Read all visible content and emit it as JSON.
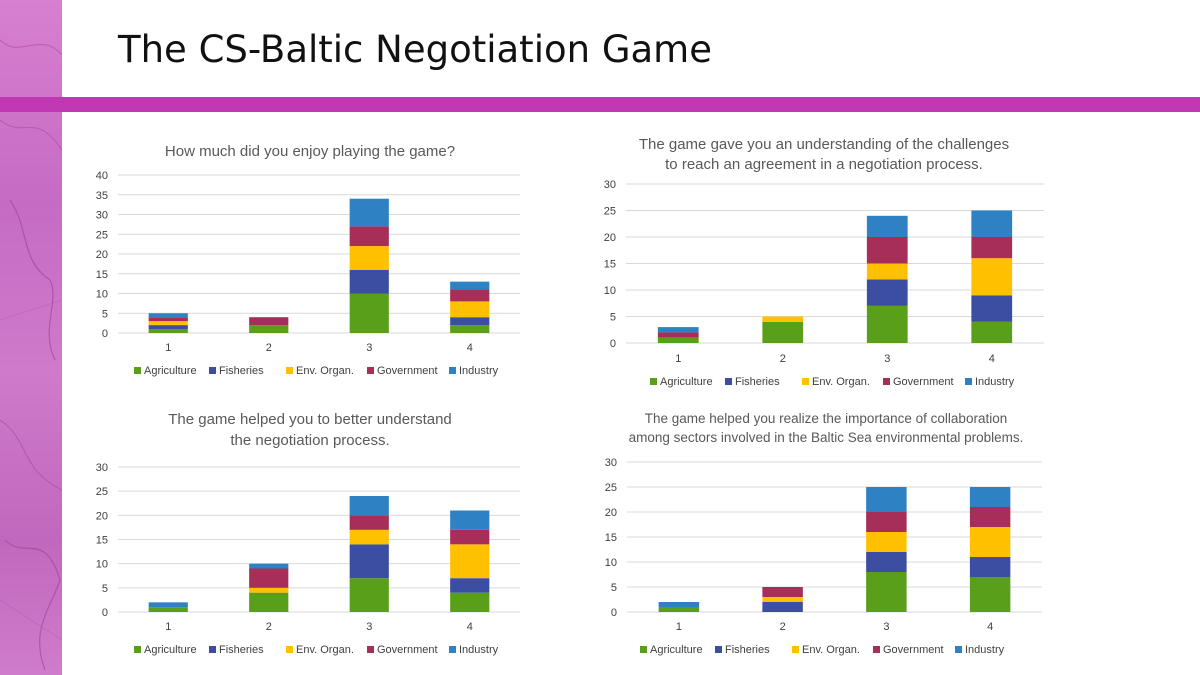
{
  "slide": {
    "title": "The CS-Baltic Negotiation Game",
    "accent_color": "#c138b5"
  },
  "chart_data": [
    {
      "type": "bar",
      "stacked": true,
      "title": [
        "How much did you enjoy playing the game?"
      ],
      "categories": [
        "1",
        "2",
        "3",
        "4"
      ],
      "ylim": [
        0,
        40
      ],
      "yticks": [
        0,
        5,
        10,
        15,
        20,
        25,
        30,
        35,
        40
      ],
      "grid": true,
      "legend": "bottom",
      "series": [
        {
          "name": "Agriculture",
          "color": "#5a9f1a",
          "values": [
            1,
            2,
            10,
            2
          ]
        },
        {
          "name": "Fisheries",
          "color": "#3c4ea2",
          "values": [
            1,
            0,
            6,
            2
          ]
        },
        {
          "name": "Env. Organ.",
          "color": "#ffc000",
          "values": [
            1,
            0,
            6,
            4
          ]
        },
        {
          "name": "Government",
          "color": "#a62e58",
          "values": [
            1,
            2,
            5,
            3
          ]
        },
        {
          "name": "Industry",
          "color": "#2e82c4",
          "values": [
            1,
            0,
            7,
            2
          ]
        }
      ]
    },
    {
      "type": "bar",
      "stacked": true,
      "title": [
        "The game gave you an understanding of the challenges",
        "to reach an agreement in a negotiation process."
      ],
      "categories": [
        "1",
        "2",
        "3",
        "4"
      ],
      "ylim": [
        0,
        30
      ],
      "yticks": [
        0,
        5,
        10,
        15,
        20,
        25,
        30
      ],
      "grid": true,
      "legend": "bottom",
      "series": [
        {
          "name": "Agriculture",
          "color": "#5a9f1a",
          "values": [
            1,
            4,
            7,
            4
          ]
        },
        {
          "name": "Fisheries",
          "color": "#3c4ea2",
          "values": [
            0,
            0,
            5,
            5
          ]
        },
        {
          "name": "Env. Organ.",
          "color": "#ffc000",
          "values": [
            0,
            1,
            3,
            7
          ]
        },
        {
          "name": "Government",
          "color": "#a62e58",
          "values": [
            1,
            0,
            5,
            4
          ]
        },
        {
          "name": "Industry",
          "color": "#2e82c4",
          "values": [
            1,
            0,
            4,
            5
          ]
        }
      ]
    },
    {
      "type": "bar",
      "stacked": true,
      "title": [
        "The game helped you to better understand",
        "the negotiation process."
      ],
      "categories": [
        "1",
        "2",
        "3",
        "4"
      ],
      "ylim": [
        0,
        30
      ],
      "yticks": [
        0,
        5,
        10,
        15,
        20,
        25,
        30
      ],
      "grid": true,
      "legend": "bottom",
      "series": [
        {
          "name": "Agriculture",
          "color": "#5a9f1a",
          "values": [
            1,
            4,
            7,
            4
          ]
        },
        {
          "name": "Fisheries",
          "color": "#3c4ea2",
          "values": [
            0,
            0,
            7,
            3
          ]
        },
        {
          "name": "Env. Organ.",
          "color": "#ffc000",
          "values": [
            0,
            1,
            3,
            7
          ]
        },
        {
          "name": "Government",
          "color": "#a62e58",
          "values": [
            0,
            4,
            3,
            3
          ]
        },
        {
          "name": "Industry",
          "color": "#2e82c4",
          "values": [
            1,
            1,
            4,
            4
          ]
        }
      ]
    },
    {
      "type": "bar",
      "stacked": true,
      "title": [
        "The game helped you realize the importance of collaboration",
        "among sectors involved in the Baltic Sea environmental problems."
      ],
      "categories": [
        "1",
        "2",
        "3",
        "4"
      ],
      "ylim": [
        0,
        30
      ],
      "yticks": [
        0,
        5,
        10,
        15,
        20,
        25,
        30
      ],
      "grid": true,
      "legend": "bottom",
      "series": [
        {
          "name": "Agriculture",
          "color": "#5a9f1a",
          "values": [
            1,
            0,
            8,
            7
          ]
        },
        {
          "name": "Fisheries",
          "color": "#3c4ea2",
          "values": [
            0,
            2,
            4,
            4
          ]
        },
        {
          "name": "Env. Organ.",
          "color": "#ffc000",
          "values": [
            0,
            1,
            4,
            6
          ]
        },
        {
          "name": "Government",
          "color": "#a62e58",
          "values": [
            0,
            2,
            4,
            4
          ]
        },
        {
          "name": "Industry",
          "color": "#2e82c4",
          "values": [
            1,
            0,
            5,
            4
          ]
        }
      ]
    }
  ]
}
